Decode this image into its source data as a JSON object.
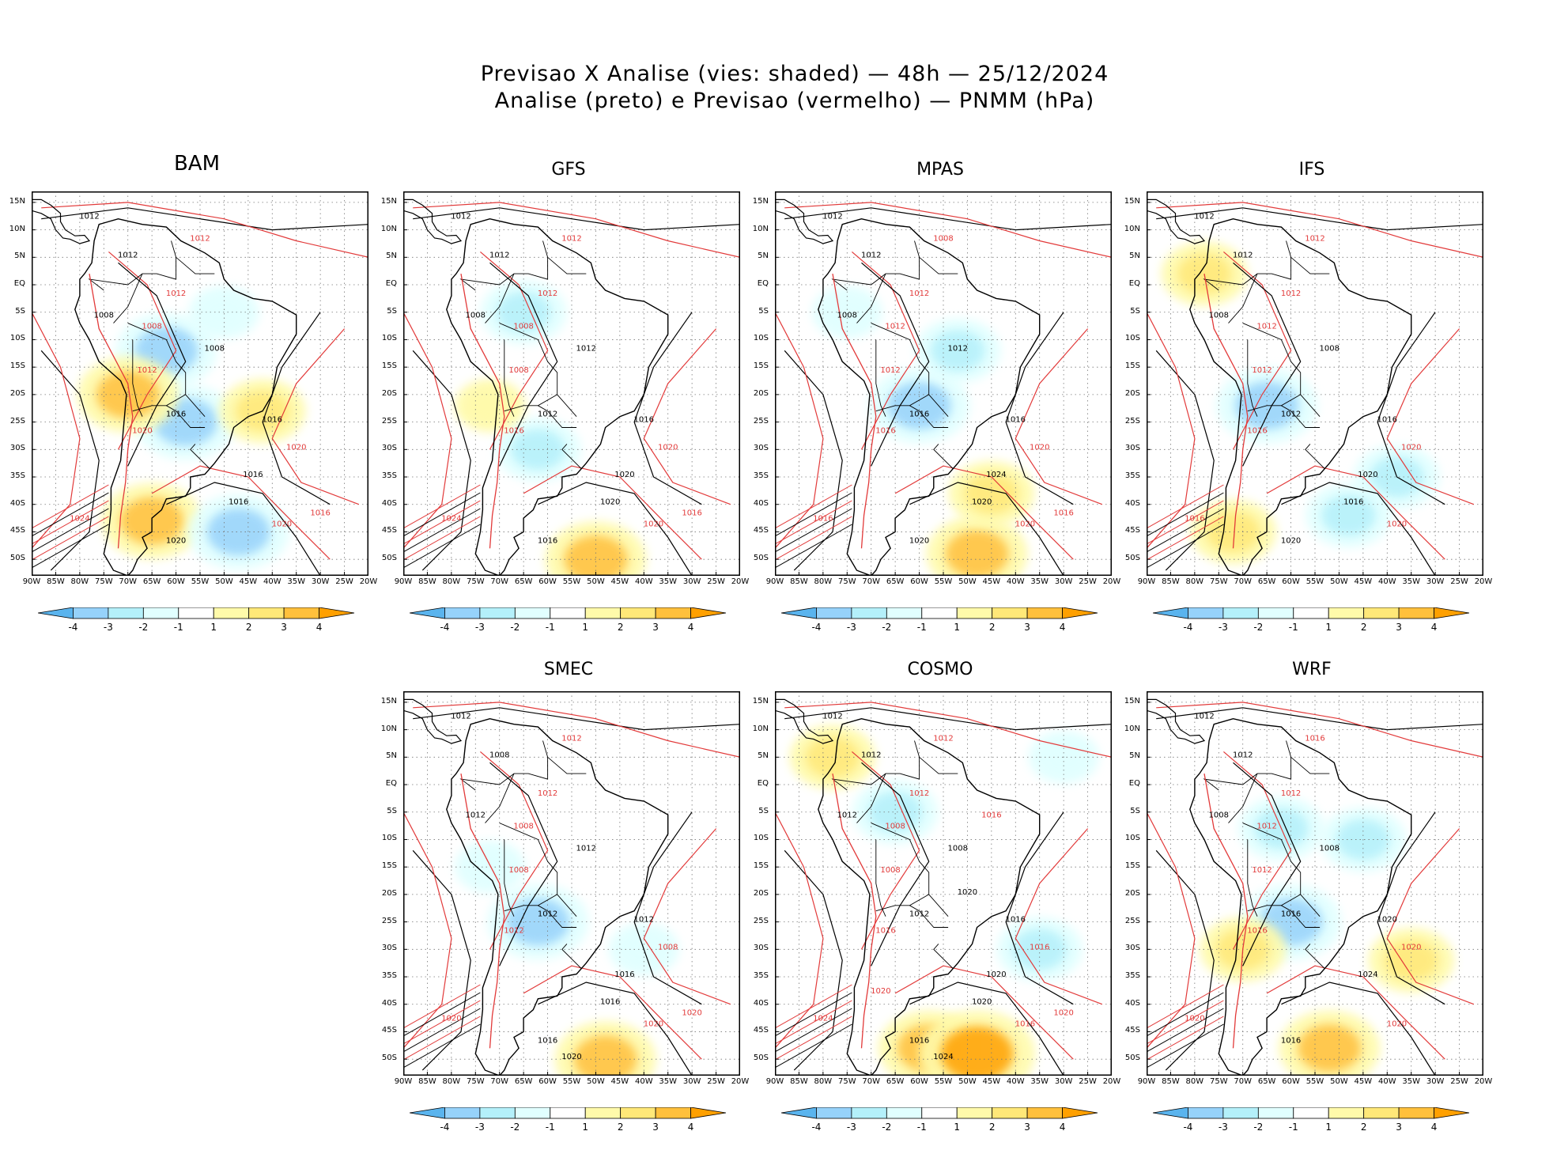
{
  "header": {
    "title_line1": "Previsao X Analise (vies: shaded) — 48h — 25/12/2024",
    "title_line2": "Analise (preto) e Previsao (vermelho) — PNMM (hPa)"
  },
  "colors": {
    "neg4": "#5ab4ee",
    "neg3": "#96d2fa",
    "neg2": "#b4f0fa",
    "neg1": "#e1ffff",
    "zero": "#ffffff",
    "pos1": "#fffaaa",
    "pos2": "#ffe878",
    "pos3": "#ffc03c",
    "pos4": "#ffa000",
    "analysis_contour": "#000000",
    "forecast_contour": "#e23a3a"
  },
  "chart_data": {
    "type": "heatmap",
    "variable": "PNMM (hPa)",
    "forecast_lead": "48h",
    "date": "25/12/2024",
    "shading": "vies (bias) forecast minus analysis",
    "x_ticks": [
      "90W",
      "85W",
      "80W",
      "75W",
      "70W",
      "65W",
      "60W",
      "55W",
      "50W",
      "45W",
      "40W",
      "35W",
      "30W",
      "25W",
      "20W"
    ],
    "y_ticks": [
      "15N",
      "10N",
      "5N",
      "EQ",
      "5S",
      "10S",
      "15S",
      "20S",
      "25S",
      "30S",
      "35S",
      "40S",
      "45S",
      "50S"
    ],
    "lon_range": [
      -90,
      -20
    ],
    "lat_range": [
      -53,
      17
    ],
    "colorbar_labels": [
      "-4",
      "-3",
      "-2",
      "-1",
      "1",
      "2",
      "3",
      "4"
    ],
    "panels": [
      {
        "model": "BAM",
        "bias_regions": [
          {
            "lon": -62,
            "lat": -12,
            "bias": -3
          },
          {
            "lon": -58,
            "lat": -25,
            "bias": -3
          },
          {
            "lon": -70,
            "lat": -20,
            "bias": 3
          },
          {
            "lon": -65,
            "lat": -43,
            "bias": 3
          },
          {
            "lon": -47,
            "lat": -45,
            "bias": -3
          },
          {
            "lon": -42,
            "lat": -23,
            "bias": 2
          },
          {
            "lon": -50,
            "lat": -5,
            "bias": -1
          }
        ],
        "contour_labels": [
          "1012",
          "1012",
          "1012",
          "1012",
          "1008",
          "1008",
          "1008",
          "1012",
          "1016",
          "1020",
          "1016",
          "1020",
          "1016",
          "1024",
          "1020",
          "1020",
          "1016",
          "1016"
        ]
      },
      {
        "model": "GFS",
        "bias_regions": [
          {
            "lon": -65,
            "lat": -5,
            "bias": -2
          },
          {
            "lon": -62,
            "lat": -30,
            "bias": -2
          },
          {
            "lon": -50,
            "lat": -50,
            "bias": 3
          },
          {
            "lon": -72,
            "lat": -22,
            "bias": 1
          }
        ],
        "contour_labels": [
          "1012",
          "1012",
          "1012",
          "1012",
          "1008",
          "1008",
          "1012",
          "1008",
          "1012",
          "1016",
          "1016",
          "1020",
          "1020",
          "1024",
          "1016",
          "1020",
          "1020",
          "1016"
        ]
      },
      {
        "model": "MPAS",
        "bias_regions": [
          {
            "lon": -60,
            "lat": -22,
            "bias": -3
          },
          {
            "lon": -52,
            "lat": -12,
            "bias": -2
          },
          {
            "lon": -48,
            "lat": -49,
            "bias": 3
          },
          {
            "lon": -45,
            "lat": -38,
            "bias": 2
          },
          {
            "lon": -75,
            "lat": -5,
            "bias": -1
          }
        ],
        "contour_labels": [
          "1012",
          "1008",
          "1012",
          "1012",
          "1008",
          "1012",
          "1012",
          "1012",
          "1016",
          "1016",
          "1016",
          "1020",
          "1024",
          "1016",
          "1020",
          "1020",
          "1020",
          "1016"
        ]
      },
      {
        "model": "IFS",
        "bias_regions": [
          {
            "lon": -78,
            "lat": 2,
            "bias": 2
          },
          {
            "lon": -65,
            "lat": -22,
            "bias": -3
          },
          {
            "lon": -38,
            "lat": -35,
            "bias": -2
          },
          {
            "lon": -48,
            "lat": -42,
            "bias": -2
          },
          {
            "lon": -72,
            "lat": -45,
            "bias": 2
          }
        ],
        "contour_labels": [
          "1012",
          "1012",
          "1012",
          "1012",
          "1008",
          "1012",
          "1008",
          "1012",
          "1012",
          "1016",
          "1016",
          "1020",
          "1020",
          "1016",
          "1020",
          "1020",
          "1016"
        ]
      },
      {
        "model": "SMEC",
        "bias_regions": [
          {
            "lon": -62,
            "lat": -25,
            "bias": -3
          },
          {
            "lon": -48,
            "lat": -50,
            "bias": 3
          },
          {
            "lon": -72,
            "lat": -15,
            "bias": -1
          },
          {
            "lon": -40,
            "lat": -30,
            "bias": -1
          }
        ],
        "contour_labels": [
          "1012",
          "1012",
          "1008",
          "1012",
          "1012",
          "1008",
          "1012",
          "1008",
          "1012",
          "1012",
          "1012",
          "1008",
          "1016",
          "1020",
          "1016",
          "1020",
          "1016",
          "1020",
          "1020"
        ]
      },
      {
        "model": "COSMO",
        "bias_regions": [
          {
            "lon": -58,
            "lat": -48,
            "bias": 3
          },
          {
            "lon": -48,
            "lat": -49,
            "bias": 4
          },
          {
            "lon": -65,
            "lat": -5,
            "bias": -2
          },
          {
            "lon": -78,
            "lat": 5,
            "bias": 2
          },
          {
            "lon": -35,
            "lat": -30,
            "bias": -2
          },
          {
            "lon": -30,
            "lat": 5,
            "bias": -1
          }
        ],
        "contour_labels": [
          "1012",
          "1012",
          "1012",
          "1012",
          "1012",
          "1008",
          "1008",
          "1008",
          "1012",
          "1016",
          "1016",
          "1016",
          "1020",
          "1024",
          "1016",
          "1016",
          "1020",
          "1020",
          "1024",
          "1020",
          "1020",
          "1016"
        ]
      },
      {
        "model": "WRF",
        "bias_regions": [
          {
            "lon": -62,
            "lat": -8,
            "bias": -2
          },
          {
            "lon": -60,
            "lat": -25,
            "bias": -3
          },
          {
            "lon": -52,
            "lat": -48,
            "bias": 3
          },
          {
            "lon": -70,
            "lat": -30,
            "bias": 2
          },
          {
            "lon": -35,
            "lat": -32,
            "bias": 2
          },
          {
            "lon": -45,
            "lat": -10,
            "bias": -2
          }
        ],
        "contour_labels": [
          "1012",
          "1016",
          "1012",
          "1012",
          "1008",
          "1012",
          "1008",
          "1012",
          "1016",
          "1016",
          "1020",
          "1020",
          "1024",
          "1020",
          "1016",
          "1020"
        ]
      }
    ]
  }
}
